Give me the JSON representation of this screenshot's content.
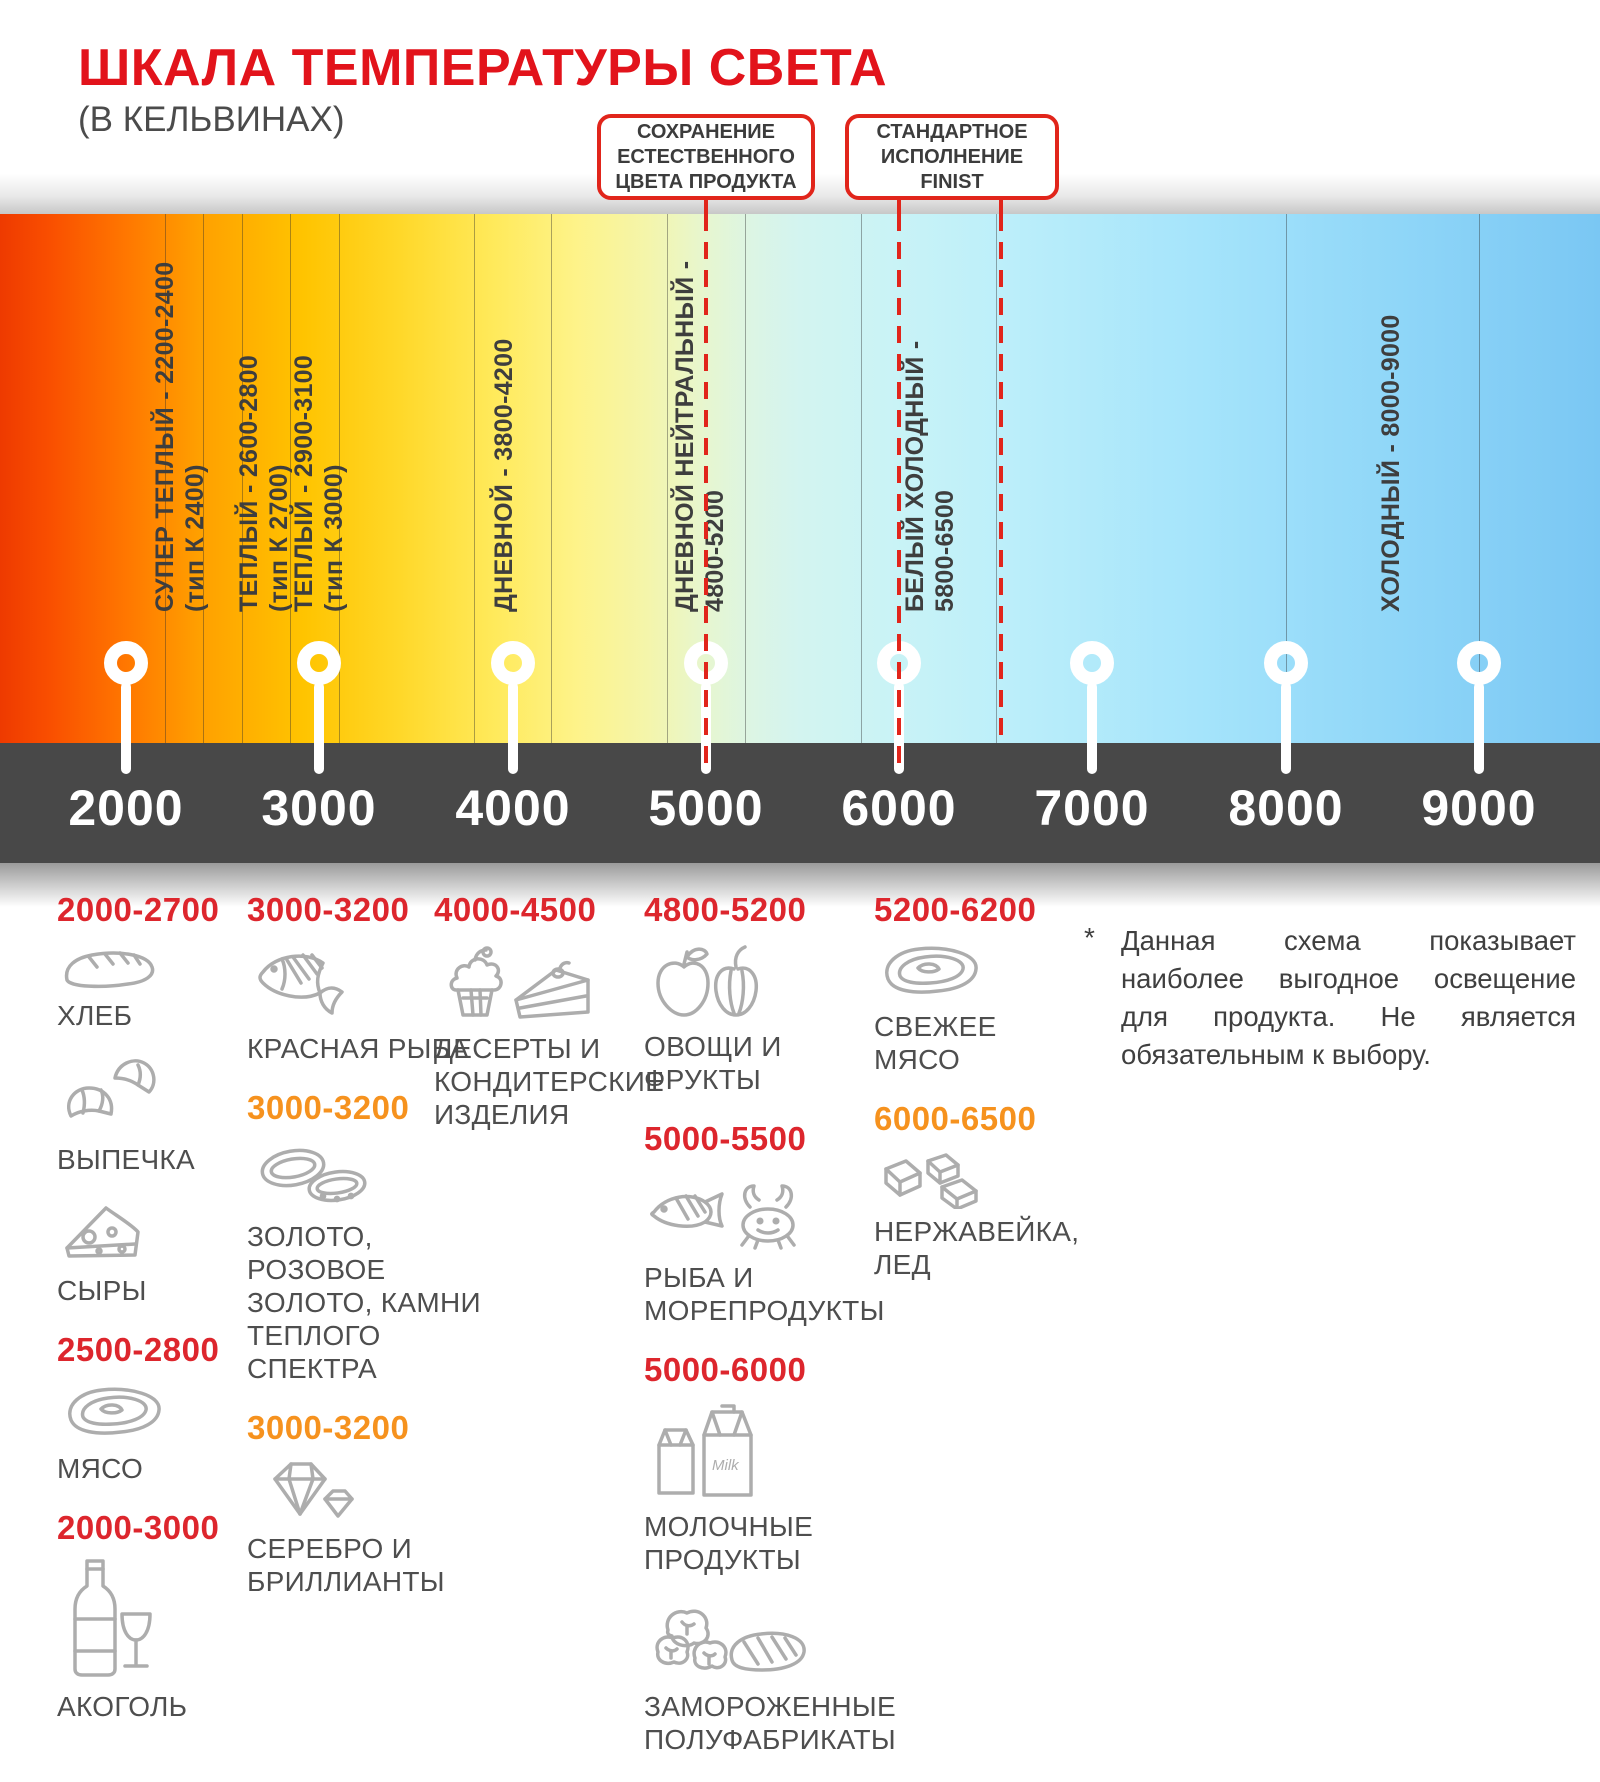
{
  "title": "ШКАЛА ТЕМПЕРАТУРЫ СВЕТА",
  "subtitle": "(В КЕЛЬВИНАХ)",
  "callouts": {
    "natural": "СОХРАНЕНИЕ ЕСТЕСТВЕННОГО ЦВЕТА ПРОДУКТА",
    "standard": "СТАНДАРТНОЕ ИСПОЛНЕНИЕ FINIST"
  },
  "colors": {
    "accent_red": "#e1251b",
    "accent_orange": "#f6921e",
    "axis_bar": "#484848",
    "text_dark": "#3e3e3e",
    "icon_gray": "#adadad"
  },
  "scale": {
    "unit": "Кельвины",
    "ticks": [
      "2000",
      "3000",
      "4000",
      "5000",
      "6000",
      "7000",
      "8000",
      "9000"
    ],
    "zones": [
      {
        "label": "СУПЕР ТЕПЛЫЙ  - 2200-2400",
        "sub": "(тип К 2400)"
      },
      {
        "label": "ТЕПЛЫЙ - 2600-2800",
        "sub": "(тип К 2700)"
      },
      {
        "label": "ТЕПЛЫЙ - 2900-3100",
        "sub": "(тип К 3000)"
      },
      {
        "label": "ДНЕВНОЙ  - 3800-4200",
        "sub": ""
      },
      {
        "label": "ДНЕВНОЙ НЕЙТРАЛЬНЫЙ -",
        "sub": "4800-5200"
      },
      {
        "label": "БЕЛЫЙ ХОЛОДНЫЙ -",
        "sub": "5800-6500"
      },
      {
        "label": "ХОЛОДНЫЙ  - 8000-9000",
        "sub": ""
      }
    ]
  },
  "categories": [
    {
      "groups": [
        {
          "range": "2000-2700",
          "color": "red",
          "items": [
            {
              "icon": "bread",
              "label": "ХЛЕБ"
            },
            {
              "icon": "croissant",
              "label": "ВЫПЕЧКА"
            },
            {
              "icon": "cheese",
              "label": "СЫРЫ"
            }
          ]
        },
        {
          "range": "2500-2800",
          "color": "red",
          "items": [
            {
              "icon": "meat",
              "label": "МЯСО"
            }
          ]
        },
        {
          "range": "2000-3000",
          "color": "red",
          "items": [
            {
              "icon": "alcohol",
              "label": "АКОГОЛЬ"
            }
          ]
        }
      ]
    },
    {
      "groups": [
        {
          "range": "3000-3200",
          "color": "red",
          "items": [
            {
              "icon": "fish",
              "label": "КРАСНАЯ РЫБА"
            }
          ]
        },
        {
          "range": "3000-3200",
          "color": "orange",
          "items": [
            {
              "icon": "rings",
              "label": "ЗОЛОТО, РОЗОВОЕ ЗОЛОТО, КАМНИ ТЕПЛОГО СПЕКТРА"
            }
          ]
        },
        {
          "range": "3000-3200",
          "color": "orange",
          "items": [
            {
              "icon": "diamond",
              "label": "СЕРЕБРО И БРИЛЛИАНТЫ"
            }
          ]
        }
      ]
    },
    {
      "groups": [
        {
          "range": "4000-4500",
          "color": "red",
          "items": [
            {
              "icon": "desserts",
              "label": "ДЕСЕРТЫ И КОНДИТЕРСКИЕ ИЗДЕЛИЯ"
            }
          ]
        }
      ]
    },
    {
      "groups": [
        {
          "range": "4800-5200",
          "color": "red",
          "items": [
            {
              "icon": "vegetables",
              "label": "ОВОЩИ И ФРУКТЫ"
            }
          ]
        },
        {
          "range": "5000-5500",
          "color": "red",
          "items": [
            {
              "icon": "seafood",
              "label": "РЫБА И МОРЕПРОДУКТЫ"
            }
          ]
        },
        {
          "range": "5000-6000",
          "color": "red",
          "items": [
            {
              "icon": "milk",
              "label": "МОЛОЧНЫЕ ПРОДУКТЫ"
            },
            {
              "icon": "frozen",
              "label": "ЗАМОРОЖЕННЫЕ ПОЛУФАБРИКАТЫ"
            }
          ]
        }
      ]
    },
    {
      "groups": [
        {
          "range": "5200-6200",
          "color": "red",
          "items": [
            {
              "icon": "steak",
              "label": "СВЕЖЕЕ МЯСО"
            }
          ]
        },
        {
          "range": "6000-6500",
          "color": "orange",
          "items": [
            {
              "icon": "ice",
              "label": "НЕРЖАВЕЙКА, ЛЕД"
            }
          ]
        }
      ]
    }
  ],
  "footnote": {
    "marker": "*",
    "text": "Данная схема показывает наиболее выгодное освещение для продукта. Не является обязательным к выбору."
  }
}
